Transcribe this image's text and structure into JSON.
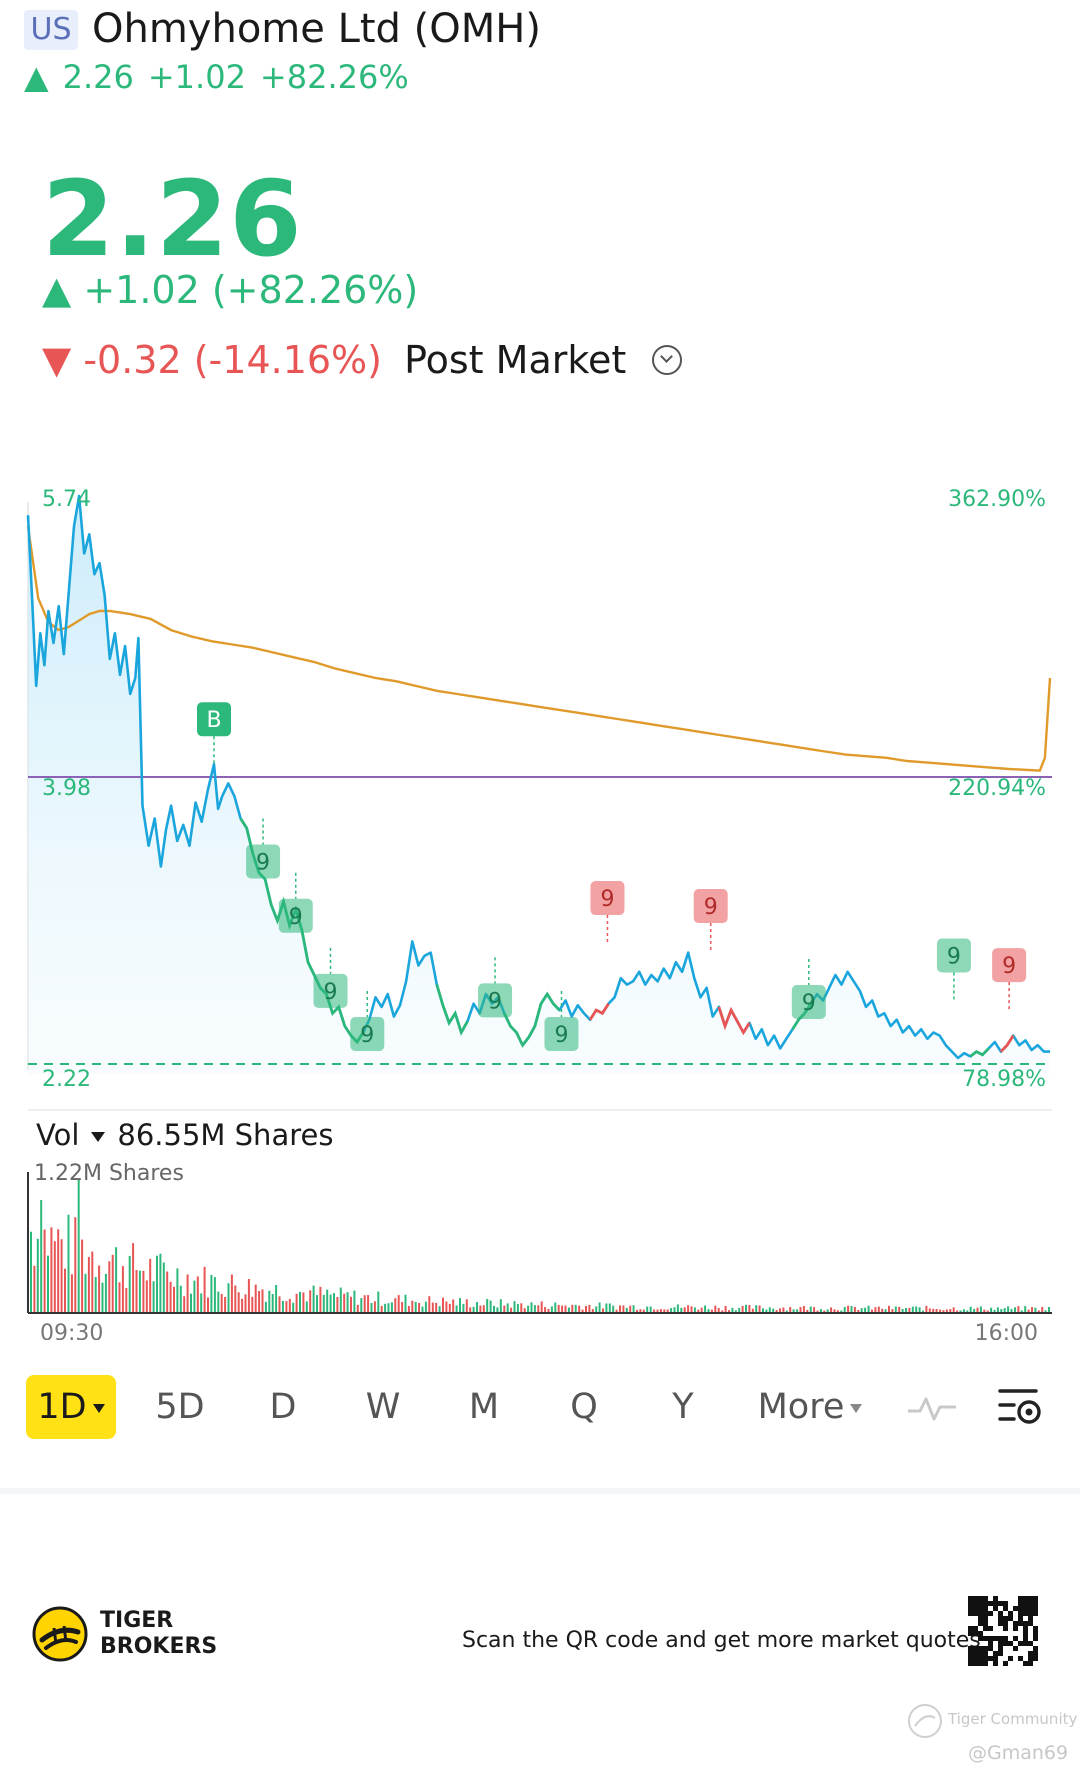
{
  "header": {
    "market": "US",
    "title": "Ohmyhome Ltd (OMH)",
    "price": "2.26",
    "change": "+1.02",
    "change_pct": "+82.26%"
  },
  "quote": {
    "price": "2.26",
    "change_line": "+1.02 (+82.26%)",
    "post_change": "-0.32 (-14.16%)",
    "post_label": "Post Market"
  },
  "colors": {
    "up": "#2db87b",
    "down": "#e85555",
    "price_line": "#1aa6dd",
    "avg_line": "#e09a2b",
    "ref_line": "#8b62b5",
    "accent": "#ffe116"
  },
  "chart_data": {
    "type": "line",
    "x_labels": [
      "09:30",
      "16:00"
    ],
    "y_labels": {
      "top": "5.74",
      "mid": "3.98",
      "bottom": "2.22"
    },
    "pct_labels": {
      "top": "362.90%",
      "mid": "220.94%",
      "bottom": "78.98%"
    },
    "ylim": [
      2.22,
      5.74
    ],
    "reference_line": 3.98,
    "low_line": 2.22,
    "markers": [
      {
        "text": "B",
        "x": 0.182,
        "y": 4.06,
        "color": "#2db87b",
        "above": true
      },
      {
        "text": "9",
        "x": 0.23,
        "y": 3.72,
        "color": "#2db87b",
        "above": false
      },
      {
        "text": "9",
        "x": 0.262,
        "y": 3.38,
        "color": "#2db87b",
        "above": false
      },
      {
        "text": "9",
        "x": 0.296,
        "y": 2.91,
        "color": "#2db87b",
        "above": false
      },
      {
        "text": "9",
        "x": 0.332,
        "y": 2.64,
        "color": "#2db87b",
        "above": false
      },
      {
        "text": "9",
        "x": 0.457,
        "y": 2.85,
        "color": "#2db87b",
        "above": false
      },
      {
        "text": "9",
        "x": 0.522,
        "y": 2.64,
        "color": "#2db87b",
        "above": false
      },
      {
        "text": "9",
        "x": 0.567,
        "y": 2.94,
        "color": "#e85555",
        "above": true
      },
      {
        "text": "9",
        "x": 0.668,
        "y": 2.89,
        "color": "#e85555",
        "above": true
      },
      {
        "text": "9",
        "x": 0.764,
        "y": 2.84,
        "color": "#2db87b",
        "above": false
      },
      {
        "text": "9",
        "x": 0.906,
        "y": 2.58,
        "color": "#2db87b",
        "above": true
      },
      {
        "text": "9",
        "x": 0.96,
        "y": 2.52,
        "color": "#e85555",
        "above": true
      }
    ],
    "price_series": [
      [
        0,
        5.62
      ],
      [
        0.004,
        5.1
      ],
      [
        0.008,
        4.55
      ],
      [
        0.012,
        4.88
      ],
      [
        0.016,
        4.68
      ],
      [
        0.02,
        5.02
      ],
      [
        0.025,
        4.82
      ],
      [
        0.03,
        5.05
      ],
      [
        0.035,
        4.75
      ],
      [
        0.04,
        5.15
      ],
      [
        0.045,
        5.55
      ],
      [
        0.05,
        5.74
      ],
      [
        0.055,
        5.38
      ],
      [
        0.06,
        5.5
      ],
      [
        0.065,
        5.25
      ],
      [
        0.07,
        5.32
      ],
      [
        0.075,
        5.12
      ],
      [
        0.08,
        4.72
      ],
      [
        0.085,
        4.88
      ],
      [
        0.09,
        4.62
      ],
      [
        0.095,
        4.8
      ],
      [
        0.1,
        4.5
      ],
      [
        0.105,
        4.6
      ],
      [
        0.108,
        4.85
      ],
      [
        0.112,
        3.8
      ],
      [
        0.118,
        3.55
      ],
      [
        0.124,
        3.72
      ],
      [
        0.13,
        3.42
      ],
      [
        0.135,
        3.65
      ],
      [
        0.14,
        3.8
      ],
      [
        0.146,
        3.58
      ],
      [
        0.152,
        3.68
      ],
      [
        0.158,
        3.55
      ],
      [
        0.164,
        3.82
      ],
      [
        0.17,
        3.7
      ],
      [
        0.176,
        3.9
      ],
      [
        0.182,
        4.06
      ],
      [
        0.186,
        3.78
      ],
      [
        0.19,
        3.86
      ],
      [
        0.196,
        3.94
      ],
      [
        0.202,
        3.86
      ],
      [
        0.208,
        3.72
      ],
      [
        0.214,
        3.66
      ],
      [
        0.22,
        3.5
      ],
      [
        0.226,
        3.38
      ],
      [
        0.232,
        3.34
      ],
      [
        0.238,
        3.18
      ],
      [
        0.244,
        3.08
      ],
      [
        0.25,
        3.2
      ],
      [
        0.256,
        3.05
      ],
      [
        0.262,
        3.15
      ],
      [
        0.268,
        3.02
      ],
      [
        0.274,
        2.82
      ],
      [
        0.28,
        2.74
      ],
      [
        0.286,
        2.66
      ],
      [
        0.292,
        2.62
      ],
      [
        0.298,
        2.5
      ],
      [
        0.304,
        2.54
      ],
      [
        0.31,
        2.42
      ],
      [
        0.316,
        2.36
      ],
      [
        0.322,
        2.32
      ],
      [
        0.328,
        2.38
      ],
      [
        0.334,
        2.46
      ],
      [
        0.34,
        2.6
      ],
      [
        0.346,
        2.54
      ],
      [
        0.352,
        2.62
      ],
      [
        0.358,
        2.48
      ],
      [
        0.364,
        2.55
      ],
      [
        0.37,
        2.7
      ],
      [
        0.376,
        2.95
      ],
      [
        0.382,
        2.8
      ],
      [
        0.388,
        2.86
      ],
      [
        0.394,
        2.88
      ],
      [
        0.4,
        2.68
      ],
      [
        0.406,
        2.55
      ],
      [
        0.412,
        2.44
      ],
      [
        0.418,
        2.5
      ],
      [
        0.424,
        2.38
      ],
      [
        0.43,
        2.45
      ],
      [
        0.436,
        2.56
      ],
      [
        0.442,
        2.5
      ],
      [
        0.448,
        2.62
      ],
      [
        0.454,
        2.56
      ],
      [
        0.46,
        2.6
      ],
      [
        0.466,
        2.5
      ],
      [
        0.472,
        2.42
      ],
      [
        0.478,
        2.38
      ],
      [
        0.484,
        2.3
      ],
      [
        0.49,
        2.35
      ],
      [
        0.496,
        2.42
      ],
      [
        0.502,
        2.56
      ],
      [
        0.508,
        2.62
      ],
      [
        0.514,
        2.56
      ],
      [
        0.52,
        2.52
      ],
      [
        0.526,
        2.58
      ],
      [
        0.532,
        2.48
      ],
      [
        0.538,
        2.55
      ],
      [
        0.544,
        2.5
      ],
      [
        0.55,
        2.46
      ],
      [
        0.556,
        2.52
      ],
      [
        0.562,
        2.5
      ],
      [
        0.568,
        2.56
      ],
      [
        0.574,
        2.6
      ],
      [
        0.58,
        2.72
      ],
      [
        0.586,
        2.68
      ],
      [
        0.592,
        2.7
      ],
      [
        0.598,
        2.76
      ],
      [
        0.604,
        2.68
      ],
      [
        0.61,
        2.74
      ],
      [
        0.616,
        2.7
      ],
      [
        0.622,
        2.78
      ],
      [
        0.628,
        2.72
      ],
      [
        0.634,
        2.82
      ],
      [
        0.64,
        2.76
      ],
      [
        0.646,
        2.88
      ],
      [
        0.652,
        2.72
      ],
      [
        0.658,
        2.6
      ],
      [
        0.664,
        2.66
      ],
      [
        0.67,
        2.48
      ],
      [
        0.676,
        2.54
      ],
      [
        0.682,
        2.42
      ],
      [
        0.688,
        2.52
      ],
      [
        0.694,
        2.45
      ],
      [
        0.7,
        2.38
      ],
      [
        0.706,
        2.44
      ],
      [
        0.712,
        2.34
      ],
      [
        0.718,
        2.4
      ],
      [
        0.724,
        2.3
      ],
      [
        0.73,
        2.36
      ],
      [
        0.736,
        2.28
      ],
      [
        0.742,
        2.34
      ],
      [
        0.748,
        2.4
      ],
      [
        0.754,
        2.46
      ],
      [
        0.76,
        2.5
      ],
      [
        0.766,
        2.56
      ],
      [
        0.772,
        2.62
      ],
      [
        0.778,
        2.58
      ],
      [
        0.784,
        2.66
      ],
      [
        0.79,
        2.74
      ],
      [
        0.796,
        2.68
      ],
      [
        0.802,
        2.76
      ],
      [
        0.808,
        2.7
      ],
      [
        0.814,
        2.64
      ],
      [
        0.82,
        2.54
      ],
      [
        0.826,
        2.58
      ],
      [
        0.832,
        2.48
      ],
      [
        0.838,
        2.5
      ],
      [
        0.844,
        2.42
      ],
      [
        0.85,
        2.46
      ],
      [
        0.856,
        2.38
      ],
      [
        0.862,
        2.42
      ],
      [
        0.868,
        2.36
      ],
      [
        0.874,
        2.4
      ],
      [
        0.88,
        2.34
      ],
      [
        0.886,
        2.38
      ],
      [
        0.892,
        2.36
      ],
      [
        0.898,
        2.3
      ],
      [
        0.904,
        2.26
      ],
      [
        0.91,
        2.22
      ],
      [
        0.916,
        2.25
      ],
      [
        0.922,
        2.23
      ],
      [
        0.928,
        2.26
      ],
      [
        0.934,
        2.24
      ],
      [
        0.94,
        2.28
      ],
      [
        0.946,
        2.32
      ],
      [
        0.952,
        2.26
      ],
      [
        0.958,
        2.3
      ],
      [
        0.964,
        2.36
      ],
      [
        0.97,
        2.3
      ],
      [
        0.976,
        2.33
      ],
      [
        0.982,
        2.27
      ],
      [
        0.988,
        2.3
      ],
      [
        0.994,
        2.26
      ],
      [
        1,
        2.26
      ]
    ],
    "avg_series": [
      [
        0,
        5.55
      ],
      [
        0.01,
        5.1
      ],
      [
        0.02,
        4.95
      ],
      [
        0.03,
        4.9
      ],
      [
        0.04,
        4.92
      ],
      [
        0.05,
        4.96
      ],
      [
        0.06,
        5.0
      ],
      [
        0.07,
        5.02
      ],
      [
        0.08,
        5.02
      ],
      [
        0.1,
        5.0
      ],
      [
        0.12,
        4.97
      ],
      [
        0.14,
        4.9
      ],
      [
        0.16,
        4.86
      ],
      [
        0.18,
        4.83
      ],
      [
        0.2,
        4.81
      ],
      [
        0.22,
        4.79
      ],
      [
        0.24,
        4.76
      ],
      [
        0.26,
        4.73
      ],
      [
        0.28,
        4.7
      ],
      [
        0.3,
        4.66
      ],
      [
        0.32,
        4.63
      ],
      [
        0.34,
        4.6
      ],
      [
        0.36,
        4.58
      ],
      [
        0.38,
        4.55
      ],
      [
        0.4,
        4.52
      ],
      [
        0.42,
        4.5
      ],
      [
        0.44,
        4.48
      ],
      [
        0.46,
        4.46
      ],
      [
        0.48,
        4.44
      ],
      [
        0.5,
        4.42
      ],
      [
        0.52,
        4.4
      ],
      [
        0.54,
        4.38
      ],
      [
        0.56,
        4.36
      ],
      [
        0.58,
        4.34
      ],
      [
        0.6,
        4.32
      ],
      [
        0.62,
        4.3
      ],
      [
        0.64,
        4.28
      ],
      [
        0.66,
        4.26
      ],
      [
        0.68,
        4.24
      ],
      [
        0.7,
        4.22
      ],
      [
        0.72,
        4.2
      ],
      [
        0.74,
        4.18
      ],
      [
        0.76,
        4.16
      ],
      [
        0.78,
        4.14
      ],
      [
        0.8,
        4.12
      ],
      [
        0.82,
        4.11
      ],
      [
        0.84,
        4.1
      ],
      [
        0.86,
        4.08
      ],
      [
        0.88,
        4.07
      ],
      [
        0.9,
        4.06
      ],
      [
        0.92,
        4.05
      ],
      [
        0.94,
        4.04
      ],
      [
        0.96,
        4.03
      ],
      [
        0.99,
        4.02
      ],
      [
        0.995,
        4.1
      ],
      [
        1,
        4.6
      ]
    ],
    "volume_label": "Vol",
    "volume_total": "86.55M Shares",
    "volume_max_label": "1.22M Shares"
  },
  "periods": [
    {
      "label": "1D",
      "active": true
    },
    {
      "label": "5D",
      "active": false
    },
    {
      "label": "D",
      "active": false
    },
    {
      "label": "W",
      "active": false
    },
    {
      "label": "M",
      "active": false
    },
    {
      "label": "Q",
      "active": false
    },
    {
      "label": "Y",
      "active": false
    },
    {
      "label": "More",
      "active": false
    }
  ],
  "icons": {
    "indicator": "pulse-icon",
    "settings": "chart-settings-icon",
    "logo": "tiger-logo-icon",
    "qr": "qr-code-icon",
    "community": "tiger-community-icon"
  },
  "footer": {
    "brand_line1": "TIGER",
    "brand_line2": "BROKERS",
    "scan_text": "Scan the QR code and get more market quotes",
    "community": "Tiger Community",
    "handle": "@Gman69"
  }
}
